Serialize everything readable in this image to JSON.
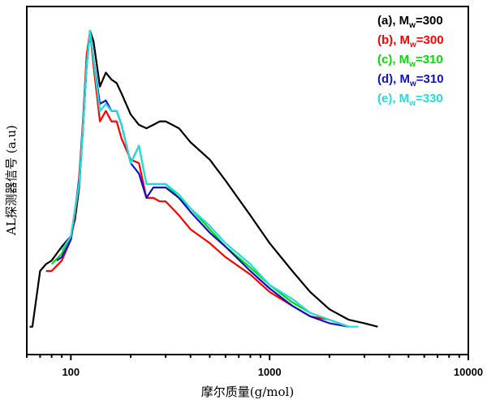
{
  "chart_data": {
    "type": "line",
    "title": "",
    "xlabel": "摩尔质量(g/mol)",
    "ylabel": "AL探测器信号 (a.u)",
    "xscale": "log",
    "xlim": [
      60,
      10000
    ],
    "ylim": [
      0,
      1
    ],
    "xticks": [
      100,
      1000,
      10000
    ],
    "xtick_labels": [
      "100",
      "1000",
      "10000"
    ],
    "yticks_shown": false,
    "grid": false,
    "legend_position": "top-right",
    "series": [
      {
        "name": "(a), Mw=300",
        "label_prefix": "(a), M",
        "label_sub": "w",
        "label_suffix": "=300",
        "color": "#000000",
        "x": [
          62,
          64,
          70,
          75,
          80,
          90,
          100,
          105,
          110,
          115,
          120,
          125,
          130,
          140,
          150,
          160,
          170,
          180,
          200,
          220,
          240,
          260,
          280,
          300,
          350,
          400,
          500,
          600,
          800,
          1000,
          1300,
          1600,
          2000,
          2500,
          3000,
          3500
        ],
        "y": [
          0.08,
          0.08,
          0.24,
          0.26,
          0.27,
          0.31,
          0.34,
          0.39,
          0.48,
          0.65,
          0.83,
          0.93,
          0.9,
          0.77,
          0.81,
          0.79,
          0.78,
          0.75,
          0.69,
          0.66,
          0.65,
          0.66,
          0.67,
          0.67,
          0.65,
          0.61,
          0.56,
          0.5,
          0.4,
          0.32,
          0.24,
          0.18,
          0.13,
          0.1,
          0.09,
          0.08
        ]
      },
      {
        "name": "(b), Mw=300",
        "label_prefix": "(b), M",
        "label_sub": "w",
        "label_suffix": "=300",
        "color": "#ff0000",
        "x": [
          75,
          80,
          90,
          100,
          105,
          110,
          115,
          120,
          125,
          130,
          140,
          150,
          160,
          170,
          180,
          200,
          220,
          240,
          260,
          280,
          300,
          350,
          400,
          500,
          600,
          800,
          1000,
          1300,
          1600,
          2000,
          2500
        ],
        "y": [
          0.24,
          0.24,
          0.27,
          0.33,
          0.4,
          0.51,
          0.67,
          0.86,
          0.93,
          0.83,
          0.67,
          0.7,
          0.67,
          0.67,
          0.62,
          0.56,
          0.55,
          0.45,
          0.45,
          0.44,
          0.44,
          0.4,
          0.36,
          0.32,
          0.28,
          0.23,
          0.18,
          0.14,
          0.11,
          0.1,
          0.08
        ]
      },
      {
        "name": "(c), Mw=310",
        "label_prefix": "(c), M",
        "label_sub": "w",
        "label_suffix": "=310",
        "color": "#00dd00",
        "x": [
          80,
          90,
          100,
          110,
          115,
          120,
          125,
          130,
          140,
          150,
          160,
          170,
          180,
          200,
          220,
          240,
          260,
          280,
          300,
          350,
          400,
          500,
          600,
          800,
          1000,
          1300,
          1600,
          2000,
          2500
        ],
        "y": [
          0.26,
          0.29,
          0.34,
          0.49,
          0.65,
          0.83,
          0.93,
          0.85,
          0.7,
          0.72,
          0.7,
          0.7,
          0.66,
          0.55,
          0.6,
          0.49,
          0.49,
          0.49,
          0.49,
          0.45,
          0.42,
          0.36,
          0.31,
          0.25,
          0.2,
          0.15,
          0.12,
          0.1,
          0.08
        ]
      },
      {
        "name": "(d), Mw=310",
        "label_prefix": "(d), M",
        "label_sub": "w",
        "label_suffix": "=310",
        "color": "#1010cc",
        "x": [
          85,
          90,
          100,
          110,
          115,
          120,
          125,
          130,
          140,
          150,
          160,
          170,
          180,
          200,
          220,
          240,
          260,
          280,
          300,
          350,
          400,
          500,
          600,
          800,
          1000,
          1300,
          1600,
          2000,
          2500
        ],
        "y": [
          0.27,
          0.28,
          0.33,
          0.5,
          0.65,
          0.83,
          0.93,
          0.85,
          0.72,
          0.73,
          0.7,
          0.7,
          0.66,
          0.55,
          0.52,
          0.45,
          0.48,
          0.48,
          0.48,
          0.45,
          0.41,
          0.35,
          0.31,
          0.24,
          0.19,
          0.14,
          0.11,
          0.09,
          0.08
        ]
      },
      {
        "name": "(e), Mw=330",
        "label_prefix": "(e), M",
        "label_sub": "w",
        "label_suffix": "=330",
        "color": "#22dddd",
        "x": [
          90,
          100,
          110,
          115,
          120,
          125,
          130,
          140,
          150,
          160,
          170,
          180,
          200,
          220,
          240,
          260,
          280,
          300,
          350,
          400,
          500,
          600,
          800,
          1000,
          1300,
          1600,
          2000,
          2500,
          2800
        ],
        "y": [
          0.3,
          0.34,
          0.49,
          0.65,
          0.83,
          0.93,
          0.85,
          0.7,
          0.72,
          0.7,
          0.7,
          0.66,
          0.55,
          0.6,
          0.49,
          0.49,
          0.49,
          0.49,
          0.46,
          0.42,
          0.37,
          0.32,
          0.26,
          0.2,
          0.16,
          0.12,
          0.1,
          0.08,
          0.08
        ]
      }
    ]
  }
}
